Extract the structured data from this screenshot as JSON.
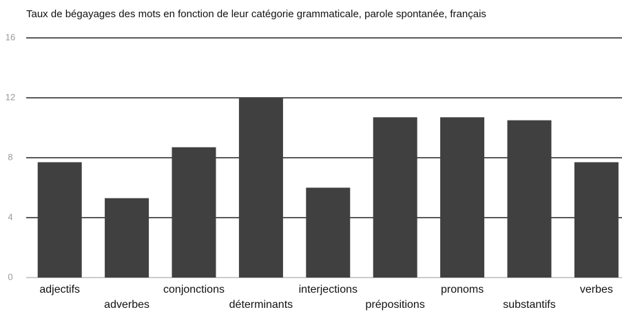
{
  "chart_data": {
    "type": "bar",
    "title": "Taux de bégayages des mots en fonction de leur catégorie grammaticale, parole spontanée, français",
    "categories": [
      "adjectifs",
      "adverbes",
      "conjonctions",
      "déterminants",
      "interjections",
      "prépositions",
      "pronoms",
      "substantifs",
      "verbes"
    ],
    "values": [
      7.7,
      5.3,
      8.7,
      12.0,
      6.0,
      10.7,
      10.7,
      10.5,
      7.7
    ],
    "color": "#404040",
    "ylim": [
      0,
      16
    ],
    "yticks": [
      0,
      4,
      8,
      12,
      16
    ],
    "grid": true
  }
}
